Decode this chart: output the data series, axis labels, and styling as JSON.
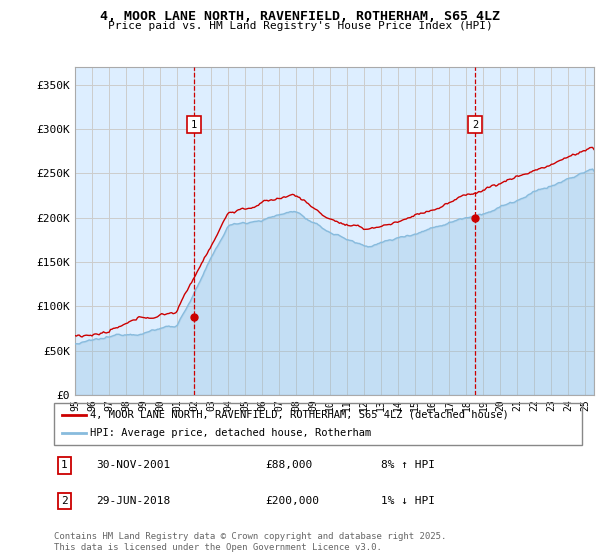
{
  "title1": "4, MOOR LANE NORTH, RAVENFIELD, ROTHERHAM, S65 4LZ",
  "title2": "Price paid vs. HM Land Registry's House Price Index (HPI)",
  "ylabel_ticks": [
    "£0",
    "£50K",
    "£100K",
    "£150K",
    "£200K",
    "£250K",
    "£300K",
    "£350K"
  ],
  "ytick_vals": [
    0,
    50000,
    100000,
    150000,
    200000,
    250000,
    300000,
    350000
  ],
  "ylim": [
    0,
    370000
  ],
  "xlim_start": 1995.0,
  "xlim_end": 2025.5,
  "sale1_x": 2002.0,
  "sale1_y": 88000,
  "sale1_label": "1",
  "sale1_date": "30-NOV-2001",
  "sale1_price": "£88,000",
  "sale1_hpi": "8% ↑ HPI",
  "sale2_x": 2018.5,
  "sale2_y": 200000,
  "sale2_label": "2",
  "sale2_date": "29-JUN-2018",
  "sale2_price": "£200,000",
  "sale2_hpi": "1% ↓ HPI",
  "line_red_color": "#cc0000",
  "line_blue_color": "#88bbdd",
  "grid_color": "#cccccc",
  "bg_color": "#ddeeff",
  "marker_box_color": "#cc0000",
  "vline_color": "#cc0000",
  "legend_label_red": "4, MOOR LANE NORTH, RAVENFIELD, ROTHERHAM, S65 4LZ (detached house)",
  "legend_label_blue": "HPI: Average price, detached house, Rotherham",
  "footer": "Contains HM Land Registry data © Crown copyright and database right 2025.\nThis data is licensed under the Open Government Licence v3.0."
}
